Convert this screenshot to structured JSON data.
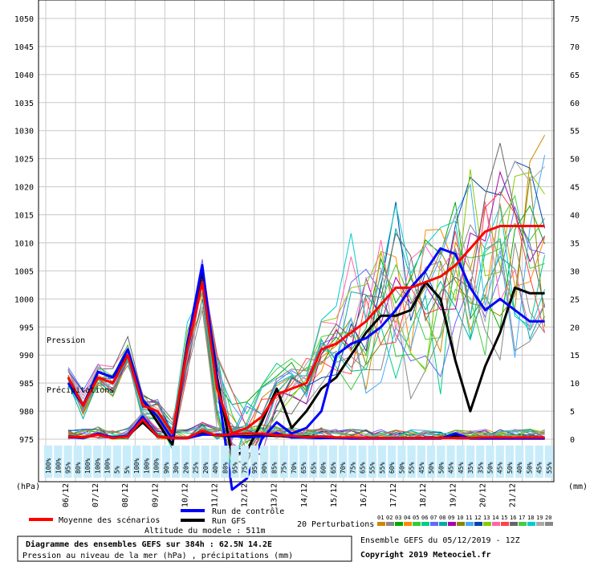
{
  "chart_data": {
    "type": "line",
    "y_left_label": "(hPa)",
    "y_right_label": "(mm)",
    "ylim_left": [
      975,
      1050
    ],
    "ylim_right": [
      0,
      75
    ],
    "yticks_left": [
      975,
      980,
      985,
      990,
      995,
      1000,
      1005,
      1010,
      1015,
      1020,
      1025,
      1030,
      1035,
      1040,
      1045,
      1050
    ],
    "yticks_right": [
      0,
      5,
      10,
      15,
      20,
      25,
      30,
      35,
      40,
      45,
      50,
      55,
      60,
      65,
      70,
      75
    ],
    "x_dates": [
      "06/12",
      "07/12",
      "08/12",
      "09/12",
      "10/12",
      "11/12",
      "12/12",
      "13/12",
      "14/12",
      "15/12",
      "16/12",
      "17/12",
      "18/12",
      "19/12",
      "20/12",
      "21/12"
    ],
    "annotations": {
      "pression": "Pression",
      "precip": "Précipitations"
    },
    "precip_probability": [
      "100%",
      "100%",
      "95%",
      "80%",
      "100%",
      "100%",
      "100%",
      "5%",
      "5%",
      "100%",
      "100%",
      "100%",
      "90%",
      "30%",
      "20%",
      "25%",
      "20%",
      "40%",
      "80%",
      "95%",
      "75%",
      "95%",
      "90%",
      "85%",
      "75%",
      "70%",
      "65%",
      "65%",
      "60%",
      "65%",
      "70%",
      "75%",
      "65%",
      "55%",
      "55%",
      "60%",
      "50%",
      "55%",
      "45%",
      "50%",
      "50%",
      "45%",
      "45%",
      "35%",
      "35%",
      "50%",
      "45%",
      "50%",
      "40%",
      "50%",
      "45%",
      "55%"
    ],
    "series": [
      {
        "name": "Moyenne des scénarios",
        "color": "#ff0000",
        "x": [
          0,
          0.5,
          1,
          1.5,
          2,
          2.5,
          3,
          3.5,
          4,
          4.5,
          5,
          5.5,
          6,
          6.5,
          7,
          7.5,
          8,
          8.5,
          9,
          9.5,
          10,
          10.5,
          11,
          11.5,
          12,
          12.5,
          13,
          13.5,
          14,
          14.5,
          15,
          15.5,
          16
        ],
        "pressure": [
          986,
          981,
          986,
          985,
          990,
          981,
          980,
          976,
          991,
          1003,
          984,
          976,
          977,
          979,
          983,
          984,
          985,
          991,
          992,
          994,
          996,
          999,
          1002,
          1002,
          1003,
          1004,
          1006,
          1009,
          1012,
          1013,
          1013,
          1013,
          1013
        ],
        "precip": [
          0.5,
          0.3,
          0.8,
          0.2,
          0.5,
          3.5,
          0.5,
          0.2,
          0.2,
          1.5,
          0.6,
          0.9,
          1.0,
          1.0,
          0.7,
          0.6,
          0.4,
          0.5,
          0.3,
          0.3,
          0.2,
          0.2,
          0.2,
          0.2,
          0.2,
          0.2,
          0.2,
          0.2,
          0.3,
          0.3,
          0.3,
          0.3,
          0.3
        ]
      },
      {
        "name": "Run de contrôle",
        "color": "#0000ff",
        "x": [
          0,
          0.5,
          1,
          1.5,
          2,
          2.5,
          3,
          3.5,
          4,
          4.5,
          5,
          5.5,
          6,
          6.5,
          7,
          7.5,
          8,
          8.5,
          9,
          9.5,
          10,
          10.5,
          11,
          11.5,
          12,
          12.5,
          13,
          13.5,
          14,
          14.5,
          15,
          15.5,
          16
        ],
        "pressure": [
          985,
          981,
          987,
          986,
          991,
          982,
          979,
          975,
          992,
          1006,
          985,
          966,
          968,
          975,
          978,
          976,
          977,
          980,
          990,
          992,
          993,
          995,
          998,
          1002,
          1005,
          1009,
          1008,
          1002,
          998,
          1000,
          998,
          996,
          996
        ],
        "precip": [
          0.4,
          0.2,
          1.0,
          0.3,
          0.6,
          4.0,
          0.5,
          0.2,
          0.2,
          0.8,
          0.8,
          0.6,
          0.3,
          0.5,
          1.0,
          0.3,
          0.3,
          0.2,
          0.2,
          0.1,
          0.1,
          0.1,
          0.1,
          0.1,
          0.1,
          0.1,
          1.0,
          0.1,
          0.1,
          0.1,
          0.1,
          0.1,
          0.1
        ]
      },
      {
        "name": "Run GFS",
        "color": "#000000",
        "x": [
          0,
          0.5,
          1,
          1.5,
          2,
          2.5,
          3,
          3.5,
          4,
          4.5,
          5,
          5.5,
          6,
          6.5,
          7,
          7.5,
          8,
          8.5,
          9,
          9.5,
          10,
          10.5,
          11,
          11.5,
          12,
          12.5,
          13,
          13.5,
          14,
          14.5,
          15,
          15.5,
          16
        ],
        "pressure": [
          986,
          981,
          987,
          986,
          990,
          982,
          978,
          974,
          992,
          1005,
          986,
          972,
          973,
          978,
          984,
          977,
          980,
          984,
          986,
          990,
          994,
          997,
          997,
          998,
          1003,
          1000,
          989,
          980,
          988,
          994,
          1002,
          1001,
          1001
        ],
        "precip": [
          0.5,
          0.3,
          0.8,
          0.2,
          0.6,
          3.0,
          0.5,
          0.2,
          0.2,
          1.0,
          0.7,
          0.5,
          0.5,
          0.6,
          0.6,
          0.4,
          0.5,
          0.3,
          0.3,
          0.2,
          0.2,
          0.2,
          0.2,
          0.2,
          0.2,
          0.2,
          0.5,
          0.2,
          0.2,
          0.2,
          0.2,
          0.2,
          0.2
        ]
      }
    ],
    "perturbation_colors": [
      "#cc8800",
      "#888888",
      "#00aa00",
      "#ff8800",
      "#33cc33",
      "#00cc88",
      "#6666ff",
      "#00aaaa",
      "#aa00aa",
      "#888800",
      "#44aaff",
      "#0044aa",
      "#88cc00",
      "#ff66aa",
      "#ff4444",
      "#666666",
      "#44cc44",
      "#00cccc",
      "#aaaaaa",
      "#888888"
    ],
    "perturbation_ids": [
      "01",
      "02",
      "03",
      "04",
      "05",
      "06",
      "07",
      "08",
      "09",
      "10",
      "11",
      "12",
      "13",
      "14",
      "15",
      "16",
      "17",
      "18",
      "19",
      "20"
    ]
  },
  "legend": {
    "mean": "Moyenne des scénarios",
    "control": "Run de contrôle",
    "gfs": "Run GFS",
    "perturbations": "20 Perturbations",
    "ensemble_info": "Ensemble GEFS du 05/12/2019 - 12Z"
  },
  "footer": {
    "altitude": "Altitude du modele : 511m",
    "title": "Diagramme des ensembles GEFS sur 384h : 62.5N 14.2E",
    "subtitle": "Pression au niveau de la mer (hPa) , précipitations (mm)",
    "copyright": "Copyright 2019 Meteociel.fr"
  }
}
